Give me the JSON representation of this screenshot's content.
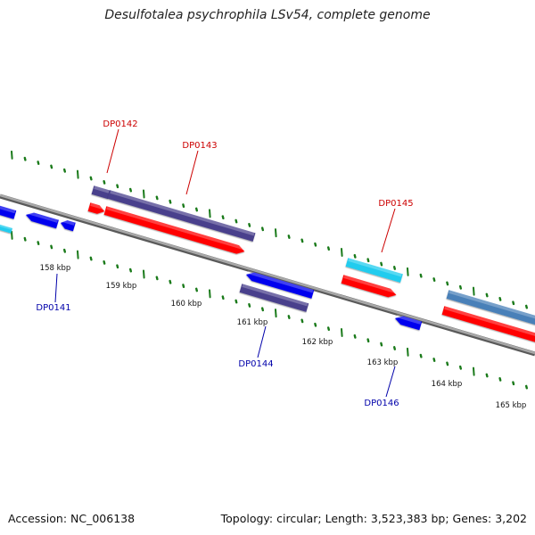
{
  "title": "Desulfotalea psychrophila LSv54, complete genome",
  "footer": {
    "accession": "Accession: NC_006138",
    "info": "Topology: circular; Length: 3,523,383 bp; Genes: 3,202"
  },
  "colors": {
    "backbone": "#8a8a8a",
    "tick": "#1a7a1a",
    "label_upper": "#cc0000",
    "label_lower": "#0000aa",
    "gene_red": "#ff0000",
    "gene_blue": "#0000ee",
    "gene_navy": "#4a3f8c",
    "gene_cyan": "#22ccee",
    "gene_steel": "#4a80b8"
  },
  "scale_labels": [
    "158 kbp",
    "159 kbp",
    "160 kbp",
    "161 kbp",
    "162 kbp",
    "163 kbp",
    "164 kbp",
    "165 kbp"
  ],
  "gene_labels_upper": [
    "DP0142",
    "DP0143",
    "DP0145"
  ],
  "gene_labels_lower": [
    "DP0141",
    "DP0144",
    "DP0146"
  ]
}
